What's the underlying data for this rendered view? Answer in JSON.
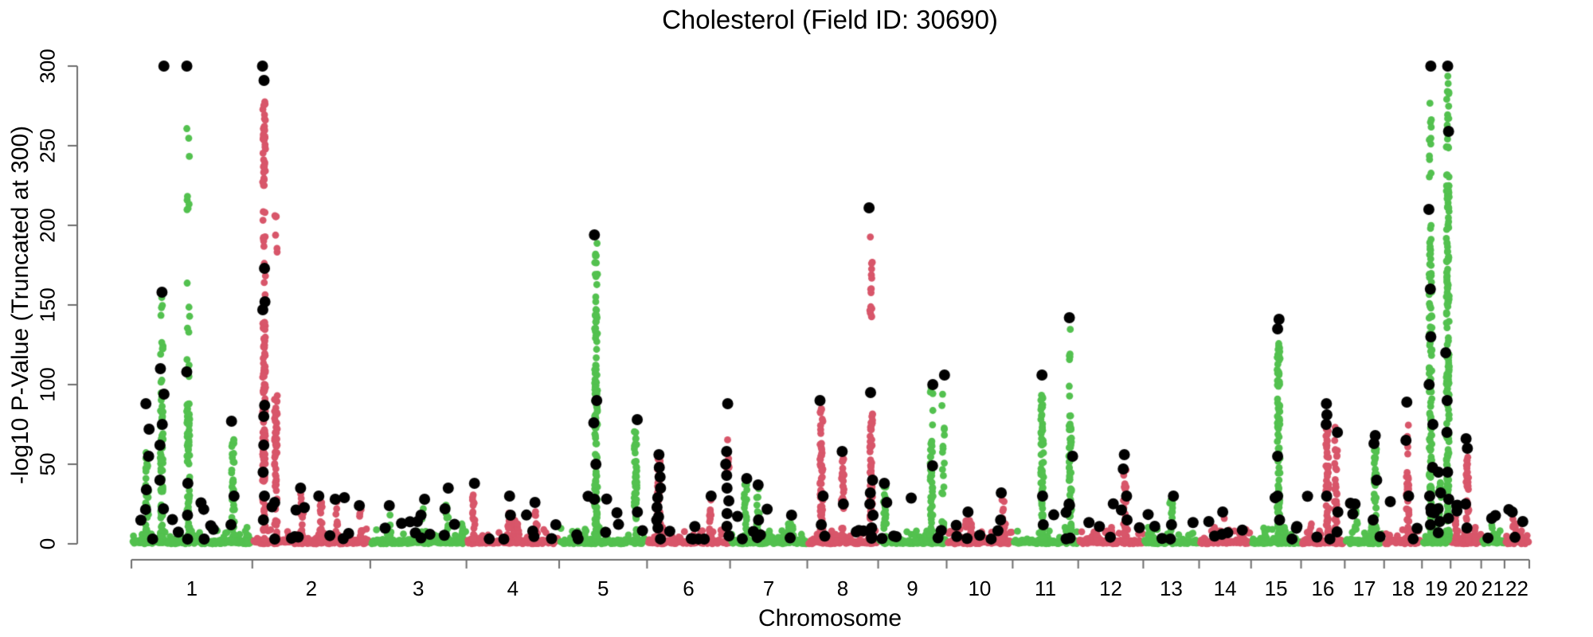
{
  "chart_data": {
    "type": "scatter",
    "subtype": "manhattan",
    "title": "Cholesterol (Field ID: 30690)",
    "xlabel": "Chromosome",
    "ylabel": "-log10 P-Value (Truncated at 300)",
    "ylim": [
      0,
      300
    ],
    "yticks": [
      0,
      50,
      100,
      150,
      200,
      250,
      300
    ],
    "grid": false,
    "legend": "none",
    "colors": {
      "odd_chromosome": "#53C14F",
      "even_chromosome": "#D8566A",
      "significant_point": "#000000",
      "axis": "#6e6e6e",
      "background": "#ffffff"
    },
    "baseline_band": {
      "description": "dense band of non-significant SNPs",
      "value_range": [
        0,
        10
      ]
    },
    "chromosomes": [
      {
        "name": "1",
        "length_mb": 249
      },
      {
        "name": "2",
        "length_mb": 243
      },
      {
        "name": "3",
        "length_mb": 198
      },
      {
        "name": "4",
        "length_mb": 191
      },
      {
        "name": "5",
        "length_mb": 181
      },
      {
        "name": "6",
        "length_mb": 171
      },
      {
        "name": "7",
        "length_mb": 159
      },
      {
        "name": "8",
        "length_mb": 146
      },
      {
        "name": "9",
        "length_mb": 141
      },
      {
        "name": "10",
        "length_mb": 136
      },
      {
        "name": "11",
        "length_mb": 135
      },
      {
        "name": "12",
        "length_mb": 134
      },
      {
        "name": "13",
        "length_mb": 115
      },
      {
        "name": "14",
        "length_mb": 107
      },
      {
        "name": "15",
        "length_mb": 103
      },
      {
        "name": "16",
        "length_mb": 90
      },
      {
        "name": "17",
        "length_mb": 81
      },
      {
        "name": "18",
        "length_mb": 78
      },
      {
        "name": "19",
        "length_mb": 59
      },
      {
        "name": "20",
        "length_mb": 63
      },
      {
        "name": "21",
        "length_mb": 48
      },
      {
        "name": "22",
        "length_mb": 51
      }
    ],
    "peaks": [
      {
        "chr": "1",
        "pos_frac": 0.13,
        "segments": [
          [
            2,
            58,
            6
          ]
        ],
        "black_points": [
          88,
          72,
          55,
          34
        ]
      },
      {
        "chr": "1",
        "pos_frac": 0.25,
        "segments": [
          [
            2,
            95,
            7
          ],
          [
            100,
            158,
            2.6
          ]
        ],
        "black_points": [
          300,
          158,
          110,
          94,
          75,
          62,
          40,
          22
        ]
      },
      {
        "chr": "1",
        "pos_frac": 0.47,
        "segments": [
          [
            2,
            88,
            7
          ],
          [
            100,
            165,
            1.4
          ],
          [
            205,
            270,
            1.3
          ]
        ],
        "black_points": [
          300,
          108,
          38,
          18
        ]
      },
      {
        "chr": "1",
        "pos_frac": 0.84,
        "segments": [
          [
            2,
            70,
            5.5
          ]
        ],
        "black_points": [
          77,
          30,
          12
        ]
      },
      {
        "chr": "2",
        "pos_frac": 0.1,
        "segments": [
          [
            2,
            140,
            7
          ],
          [
            150,
            215,
            1.8
          ],
          [
            224,
            278,
            7
          ]
        ],
        "black_points": [
          300,
          291,
          173,
          152,
          147,
          87,
          80,
          62,
          45,
          30,
          15
        ]
      },
      {
        "chr": "2",
        "pos_frac": 0.2,
        "segments": [
          [
            2,
            100,
            6
          ],
          [
            180,
            208,
            2.2
          ]
        ],
        "black_points": [
          26
        ]
      },
      {
        "chr": "2",
        "pos_frac": 0.42,
        "segments": [
          [
            2,
            32,
            5
          ]
        ],
        "black_points": [
          35
        ]
      },
      {
        "chr": "2",
        "pos_frac": 0.58,
        "segments": [
          [
            2,
            30,
            5
          ]
        ],
        "black_points": [
          30
        ]
      },
      {
        "chr": "2",
        "pos_frac": 0.72,
        "segments": [
          [
            2,
            28,
            4
          ]
        ],
        "black_points": [
          28
        ]
      },
      {
        "chr": "2",
        "pos_frac": 0.92,
        "segments": [
          [
            2,
            22,
            4
          ]
        ],
        "black_points": [
          24
        ]
      },
      {
        "chr": "3",
        "pos_frac": 0.2,
        "segments": [
          [
            2,
            20,
            4
          ]
        ],
        "black_points": [
          24
        ]
      },
      {
        "chr": "3",
        "pos_frac": 0.55,
        "segments": [
          [
            2,
            25,
            4.5
          ]
        ],
        "black_points": [
          28,
          18
        ]
      },
      {
        "chr": "3",
        "pos_frac": 0.8,
        "segments": [
          [
            2,
            30,
            5
          ]
        ],
        "black_points": [
          35,
          22
        ]
      },
      {
        "chr": "4",
        "pos_frac": 0.08,
        "segments": [
          [
            2,
            33,
            5
          ]
        ],
        "black_points": [
          38
        ]
      },
      {
        "chr": "4",
        "pos_frac": 0.45,
        "segments": [
          [
            2,
            26,
            4.5
          ]
        ],
        "black_points": [
          30
        ]
      },
      {
        "chr": "4",
        "pos_frac": 0.75,
        "segments": [
          [
            2,
            22,
            4
          ]
        ],
        "black_points": [
          26
        ]
      },
      {
        "chr": "5",
        "pos_frac": 0.42,
        "segments": [
          [
            2,
            148,
            7
          ],
          [
            152,
            192,
            3.2
          ]
        ],
        "black_points": [
          194,
          90,
          76,
          50,
          28
        ]
      },
      {
        "chr": "5",
        "pos_frac": 0.87,
        "segments": [
          [
            2,
            72,
            6
          ]
        ],
        "black_points": [
          78,
          20
        ]
      },
      {
        "chr": "6",
        "pos_frac": 0.14,
        "segments": [
          [
            2,
            55,
            7
          ]
        ],
        "black_points": [
          56,
          48,
          42,
          35,
          29,
          23,
          17,
          10
        ]
      },
      {
        "chr": "6",
        "pos_frac": 0.76,
        "segments": [
          [
            2,
            28,
            5
          ]
        ],
        "black_points": [
          30
        ]
      },
      {
        "chr": "6",
        "pos_frac": 0.97,
        "segments": [
          [
            40,
            66,
            3
          ]
        ],
        "black_points": [
          88,
          58,
          50,
          43,
          35,
          27,
          19,
          11,
          5
        ]
      },
      {
        "chr": "7",
        "pos_frac": 0.2,
        "segments": [
          [
            2,
            38,
            5.5
          ]
        ],
        "black_points": [
          41
        ]
      },
      {
        "chr": "7",
        "pos_frac": 0.36,
        "segments": [
          [
            2,
            35,
            4.5
          ]
        ],
        "black_points": [
          37,
          15
        ]
      },
      {
        "chr": "7",
        "pos_frac": 0.8,
        "segments": [
          [
            2,
            14,
            3
          ]
        ],
        "black_points": [
          18
        ]
      },
      {
        "chr": "8",
        "pos_frac": 0.2,
        "segments": [
          [
            2,
            85,
            7
          ]
        ],
        "black_points": [
          90,
          30,
          12
        ]
      },
      {
        "chr": "8",
        "pos_frac": 0.5,
        "segments": [
          [
            2,
            55,
            6
          ]
        ],
        "black_points": [
          58,
          25
        ]
      },
      {
        "chr": "8",
        "pos_frac": 0.9,
        "segments": [
          [
            2,
            82,
            7
          ],
          [
            130,
            178,
            3
          ],
          [
            190,
            196,
            2
          ]
        ],
        "black_points": [
          211,
          95,
          40,
          32,
          25,
          18,
          10
        ]
      },
      {
        "chr": "9",
        "pos_frac": 0.1,
        "segments": [
          [
            2,
            40,
            5
          ]
        ],
        "black_points": [
          38,
          26
        ]
      },
      {
        "chr": "9",
        "pos_frac": 0.78,
        "segments": [
          [
            2,
            65,
            6
          ],
          [
            70,
            100,
            1.6
          ]
        ],
        "black_points": [
          100,
          49
        ]
      },
      {
        "chr": "9",
        "pos_frac": 0.95,
        "segments": [
          [
            2,
            20,
            4
          ],
          [
            25,
            100,
            1.8
          ]
        ],
        "black_points": [
          106
        ]
      },
      {
        "chr": "10",
        "pos_frac": 0.3,
        "segments": [
          [
            2,
            18,
            4
          ]
        ],
        "black_points": [
          20
        ]
      },
      {
        "chr": "10",
        "pos_frac": 0.85,
        "segments": [
          [
            2,
            28,
            4.5
          ]
        ],
        "black_points": [
          32,
          15
        ]
      },
      {
        "chr": "11",
        "pos_frac": 0.45,
        "segments": [
          [
            2,
            95,
            7
          ]
        ],
        "black_points": [
          106,
          30
        ]
      },
      {
        "chr": "11",
        "pos_frac": 0.88,
        "segments": [
          [
            2,
            82,
            7
          ],
          [
            90,
            136,
            1.6
          ]
        ],
        "black_points": [
          142,
          55,
          25
        ]
      },
      {
        "chr": "12",
        "pos_frac": 0.72,
        "segments": [
          [
            2,
            50,
            6
          ]
        ],
        "black_points": [
          56,
          47,
          30,
          15
        ]
      },
      {
        "chr": "13",
        "pos_frac": 0.5,
        "segments": [
          [
            2,
            28,
            4.5
          ]
        ],
        "black_points": [
          30,
          12
        ]
      },
      {
        "chr": "14",
        "pos_frac": 0.5,
        "segments": [
          [
            2,
            16,
            3.5
          ]
        ],
        "black_points": [
          20
        ]
      },
      {
        "chr": "15",
        "pos_frac": 0.55,
        "segments": [
          [
            2,
            130,
            7
          ]
        ],
        "black_points": [
          141,
          135,
          55,
          30,
          15
        ]
      },
      {
        "chr": "16",
        "pos_frac": 0.6,
        "segments": [
          [
            2,
            72,
            7
          ]
        ],
        "black_points": [
          88,
          81,
          75,
          30
        ]
      },
      {
        "chr": "16",
        "pos_frac": 0.8,
        "segments": [
          [
            2,
            60,
            5
          ],
          [
            64,
            76,
            2.2
          ]
        ],
        "black_points": [
          70,
          20
        ]
      },
      {
        "chr": "17",
        "pos_frac": 0.3,
        "segments": [
          [
            2,
            22,
            4
          ]
        ],
        "black_points": [
          25
        ]
      },
      {
        "chr": "17",
        "pos_frac": 0.78,
        "segments": [
          [
            2,
            60,
            6
          ]
        ],
        "black_points": [
          68,
          63,
          40,
          15
        ]
      },
      {
        "chr": "18",
        "pos_frac": 0.62,
        "segments": [
          [
            2,
            45,
            6
          ],
          [
            55,
            80,
            2.2
          ]
        ],
        "black_points": [
          89,
          65,
          30
        ]
      },
      {
        "chr": "19",
        "pos_frac": 0.3,
        "segments": [
          [
            2,
            200,
            6
          ],
          [
            230,
            296,
            1.6
          ]
        ],
        "black_points": [
          300,
          210,
          160,
          130,
          100,
          75,
          48,
          30,
          20,
          12
        ]
      },
      {
        "chr": "19",
        "pos_frac": 0.62,
        "segments": [
          [
            2,
            40,
            5
          ]
        ],
        "black_points": [
          45,
          32,
          22,
          14,
          7
        ]
      },
      {
        "chr": "19",
        "pos_frac": 0.9,
        "segments": [
          [
            2,
            232,
            7
          ],
          [
            240,
            298,
            3
          ]
        ],
        "black_points": [
          300,
          259,
          120,
          90,
          70,
          45,
          28,
          16
        ]
      },
      {
        "chr": "20",
        "pos_frac": 0.2,
        "segments": [
          [
            2,
            20,
            4
          ]
        ],
        "black_points": [
          24
        ]
      },
      {
        "chr": "20",
        "pos_frac": 0.55,
        "segments": [
          [
            2,
            55,
            6
          ]
        ],
        "black_points": [
          66,
          60,
          25,
          10
        ]
      },
      {
        "chr": "21",
        "pos_frac": 0.5,
        "segments": [
          [
            2,
            12,
            3
          ]
        ],
        "black_points": [
          16
        ]
      },
      {
        "chr": "22",
        "pos_frac": 0.3,
        "segments": [
          [
            2,
            16,
            3.5
          ]
        ],
        "black_points": [
          20
        ]
      },
      {
        "chr": "22",
        "pos_frac": 0.65,
        "segments": [
          [
            2,
            14,
            3
          ]
        ],
        "black_points": [
          14
        ]
      }
    ]
  }
}
